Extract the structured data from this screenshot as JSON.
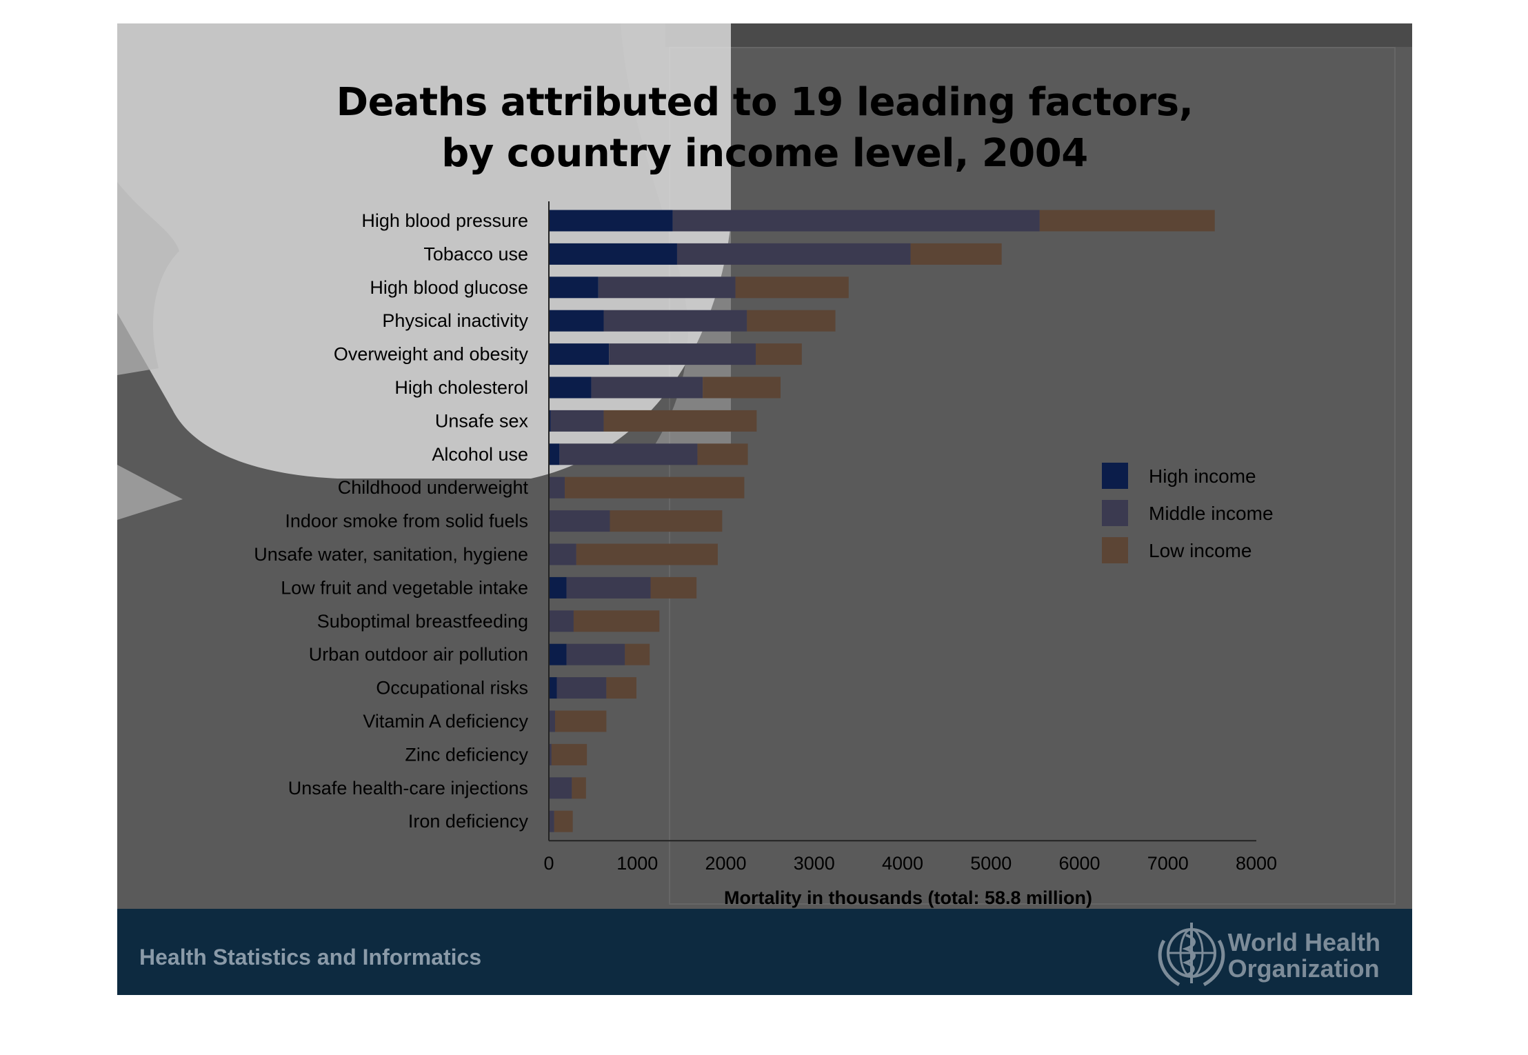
{
  "title_line1": "Deaths attributed to 19 leading factors,",
  "title_line2": "by country income level, 2004",
  "footer": {
    "left_text": "Health Statistics and Informatics",
    "org_line1": "World Health",
    "org_line2": "Organization"
  },
  "colors": {
    "high": "#0b1d4a",
    "middle": "#3b3a50",
    "low": "#5c4535",
    "slide_bg": "#5a5a5a",
    "footer_bg": "#0d2a40"
  },
  "chart_data": {
    "type": "bar",
    "orientation": "horizontal",
    "stacked": true,
    "title": "Deaths attributed to 19 leading factors, by country income level, 2004",
    "xlabel": "Mortality in thousands (total: 58.8 million)",
    "ylabel": "",
    "xlim": [
      0,
      8000
    ],
    "xticks": [
      0,
      1000,
      2000,
      3000,
      4000,
      5000,
      6000,
      7000,
      8000
    ],
    "legend_position": "right",
    "categories": [
      "High blood pressure",
      "Tobacco use",
      "High blood glucose",
      "Physical inactivity",
      "Overweight and obesity",
      "High cholesterol",
      "Unsafe sex",
      "Alcohol use",
      "Childhood underweight",
      "Indoor smoke from solid fuels",
      "Unsafe water, sanitation, hygiene",
      "Low fruit and vegetable intake",
      "Suboptimal breastfeeding",
      "Urban outdoor air pollution",
      "Occupational risks",
      "Vitamin A deficiency",
      "Zinc deficiency",
      "Unsafe health-care injections",
      "Iron deficiency"
    ],
    "series": [
      {
        "name": "High income",
        "color": "#0b1d4a",
        "values": [
          1400,
          1450,
          560,
          620,
          680,
          480,
          20,
          120,
          0,
          0,
          0,
          200,
          0,
          200,
          90,
          0,
          0,
          0,
          0
        ]
      },
      {
        "name": "Middle income",
        "color": "#3b3a50",
        "values": [
          4150,
          2640,
          1550,
          1620,
          1660,
          1260,
          600,
          1560,
          180,
          690,
          310,
          950,
          280,
          660,
          560,
          70,
          30,
          260,
          60
        ]
      },
      {
        "name": "Low income",
        "color": "#5c4535",
        "values": [
          1980,
          1030,
          1280,
          1000,
          520,
          880,
          1730,
          570,
          2030,
          1270,
          1600,
          520,
          970,
          280,
          340,
          580,
          400,
          160,
          210
        ]
      }
    ]
  }
}
